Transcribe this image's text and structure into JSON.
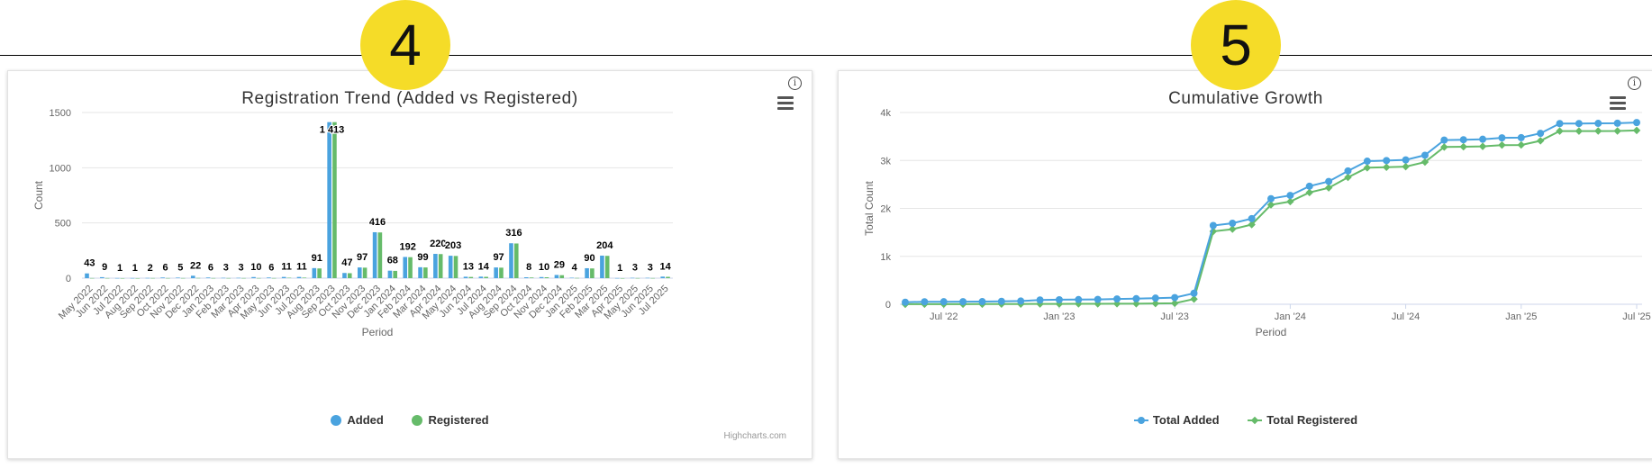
{
  "badges": {
    "left": "4",
    "right": "5"
  },
  "colors": {
    "added": "#4aa3df",
    "registered": "#66bb6a",
    "grid": "#e6e6e6",
    "badge": "#f5dc28"
  },
  "icons": {
    "menu": "hamburger-menu-icon",
    "info": "info-icon"
  },
  "info_glyph": "i",
  "credits": "Highcharts.com",
  "chart_data": [
    {
      "type": "bar",
      "title": "Registration Trend (Added vs Registered)",
      "xlabel": "Period",
      "ylabel": "Count",
      "ylim": [
        0,
        1500
      ],
      "yticks": [
        0,
        500,
        1000,
        1500
      ],
      "grid": true,
      "legend_position": "bottom-center",
      "categories": [
        "May 2022",
        "Jun 2022",
        "Jul 2022",
        "Aug 2022",
        "Sep 2022",
        "Oct 2022",
        "Nov 2022",
        "Dec 2022",
        "Jan 2023",
        "Feb 2023",
        "Mar 2023",
        "Apr 2023",
        "May 2023",
        "Jun 2023",
        "Jul 2023",
        "Aug 2023",
        "Sep 2023",
        "Oct 2023",
        "Nov 2023",
        "Dec 2023",
        "Jan 2024",
        "Feb 2024",
        "Mar 2024",
        "Apr 2024",
        "May 2024",
        "Jun 2024",
        "Jul 2024",
        "Aug 2024",
        "Sep 2024",
        "Oct 2024",
        "Nov 2024",
        "Dec 2024",
        "Jan 2025",
        "Feb 2025",
        "Mar 2025",
        "Apr 2025",
        "May 2025",
        "Jun 2025",
        "Jul 2025"
      ],
      "series": [
        {
          "name": "Added",
          "values": [
            43,
            9,
            1,
            1,
            2,
            6,
            5,
            22,
            6,
            3,
            3,
            10,
            6,
            11,
            11,
            91,
            1413,
            47,
            97,
            416,
            68,
            192,
            99,
            220,
            203,
            13,
            14,
            97,
            316,
            8,
            10,
            29,
            4,
            90,
            204,
            1,
            3,
            3,
            14
          ]
        },
        {
          "name": "Registered",
          "values": [
            1,
            1,
            0,
            0,
            1,
            1,
            1,
            2,
            1,
            1,
            1,
            1,
            1,
            4,
            5,
            88,
            1413,
            45,
            95,
            414,
            66,
            190,
            97,
            218,
            201,
            11,
            12,
            95,
            314,
            6,
            8,
            27,
            2,
            88,
            202,
            0,
            1,
            1,
            12
          ]
        }
      ],
      "data_labels": [
        "43",
        "9",
        "1",
        "1",
        "2",
        "6",
        "5",
        "22",
        "6",
        "3",
        "3",
        "10",
        "6",
        "11",
        "11",
        "91",
        "1 413",
        "47",
        "97",
        "416",
        "68",
        "192",
        "99",
        "220",
        "203",
        "13",
        "14",
        "97",
        "316",
        "8",
        "10",
        "29",
        "4",
        "90",
        "204",
        "1",
        "3",
        "3",
        "14"
      ],
      "legend": [
        "Added",
        "Registered"
      ]
    },
    {
      "type": "line",
      "title": "Cumulative Growth",
      "xlabel": "Period",
      "ylabel": "Total Count",
      "ylim": [
        0,
        4000
      ],
      "yticks": [
        0,
        1000,
        2000,
        3000,
        4000
      ],
      "ytick_labels": [
        "0",
        "1k",
        "2k",
        "3k",
        "4k"
      ],
      "xtick_labels": [
        "Jul '22",
        "Jan '23",
        "Jul '23",
        "Jan '24",
        "Jul '24",
        "Jan '25",
        "Jul '25"
      ],
      "xtick_index": [
        2,
        8,
        14,
        20,
        26,
        32,
        38
      ],
      "grid": true,
      "legend_position": "bottom-center",
      "x": [
        "May 2022",
        "Jun 2022",
        "Jul 2022",
        "Aug 2022",
        "Sep 2022",
        "Oct 2022",
        "Nov 2022",
        "Dec 2022",
        "Jan 2023",
        "Feb 2023",
        "Mar 2023",
        "Apr 2023",
        "May 2023",
        "Jun 2023",
        "Jul 2023",
        "Aug 2023",
        "Sep 2023",
        "Oct 2023",
        "Nov 2023",
        "Dec 2023",
        "Jan 2024",
        "Feb 2024",
        "Mar 2024",
        "Apr 2024",
        "May 2024",
        "Jun 2024",
        "Jul 2024",
        "Aug 2024",
        "Sep 2024",
        "Oct 2024",
        "Nov 2024",
        "Dec 2024",
        "Jan 2025",
        "Feb 2025",
        "Mar 2025",
        "Apr 2025",
        "May 2025",
        "Jun 2025",
        "Jul 2025"
      ],
      "series": [
        {
          "name": "Total Added",
          "values": [
            43,
            52,
            53,
            54,
            56,
            62,
            67,
            89,
            95,
            98,
            101,
            111,
            117,
            128,
            139,
            230,
            1643,
            1690,
            1787,
            2203,
            2271,
            2463,
            2562,
            2782,
            2985,
            2998,
            3012,
            3109,
            3425,
            3433,
            3443,
            3472,
            3476,
            3566,
            3770,
            3771,
            3774,
            3777,
            3791
          ]
        },
        {
          "name": "Total Registered",
          "values": [
            1,
            2,
            2,
            2,
            3,
            4,
            5,
            7,
            8,
            9,
            10,
            11,
            12,
            16,
            21,
            109,
            1522,
            1567,
            1662,
            2076,
            2142,
            2332,
            2429,
            2647,
            2848,
            2859,
            2871,
            2966,
            3280,
            3286,
            3294,
            3321,
            3323,
            3411,
            3613,
            3613,
            3614,
            3615,
            3627
          ]
        }
      ],
      "legend": [
        "Total Added",
        "Total Registered"
      ]
    }
  ]
}
